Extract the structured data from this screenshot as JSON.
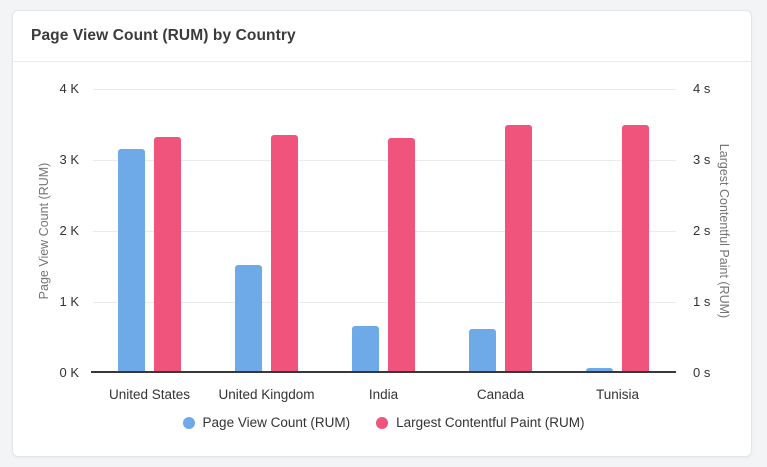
{
  "card": {
    "title": "Page View Count (RUM) by Country"
  },
  "colors": {
    "page_bg": "#f3f4f5",
    "card_bg": "#ffffff",
    "series_blue": "#6FAAE8",
    "series_red": "#F0537B",
    "grid_line": "#eaebec",
    "axis_line": "#37383a"
  },
  "chart_data": {
    "type": "bar",
    "title": "Page View Count (RUM) by Country",
    "categories": [
      "United States",
      "United Kingdom",
      "India",
      "Canada",
      "Tunisia"
    ],
    "series": [
      {
        "name": "Page View Count (RUM)",
        "axis": "left",
        "color": "#6FAAE8",
        "unit": "pageviews",
        "values": [
          3130,
          1500,
          630,
          590,
          40
        ]
      },
      {
        "name": "Largest Contentful Paint (RUM)",
        "axis": "right",
        "color": "#F0537B",
        "unit": "s",
        "values": [
          3.3,
          3.33,
          3.28,
          3.46,
          3.46
        ]
      }
    ],
    "left_axis": {
      "label": "Page View Count (RUM)",
      "min": 0,
      "max": 4000,
      "ticks": [
        "4 K",
        "3 K",
        "2 K",
        "1 K",
        "0 K"
      ]
    },
    "right_axis": {
      "label": "Largest Contentful Paint (RUM)",
      "min": 0,
      "max": 4,
      "ticks": [
        "4 s",
        "3 s",
        "2 s",
        "1 s",
        "0 s"
      ]
    },
    "grid": true,
    "legend_position": "bottom",
    "legend": [
      "Page View Count (RUM)",
      "Largest Contentful Paint (RUM)"
    ]
  }
}
